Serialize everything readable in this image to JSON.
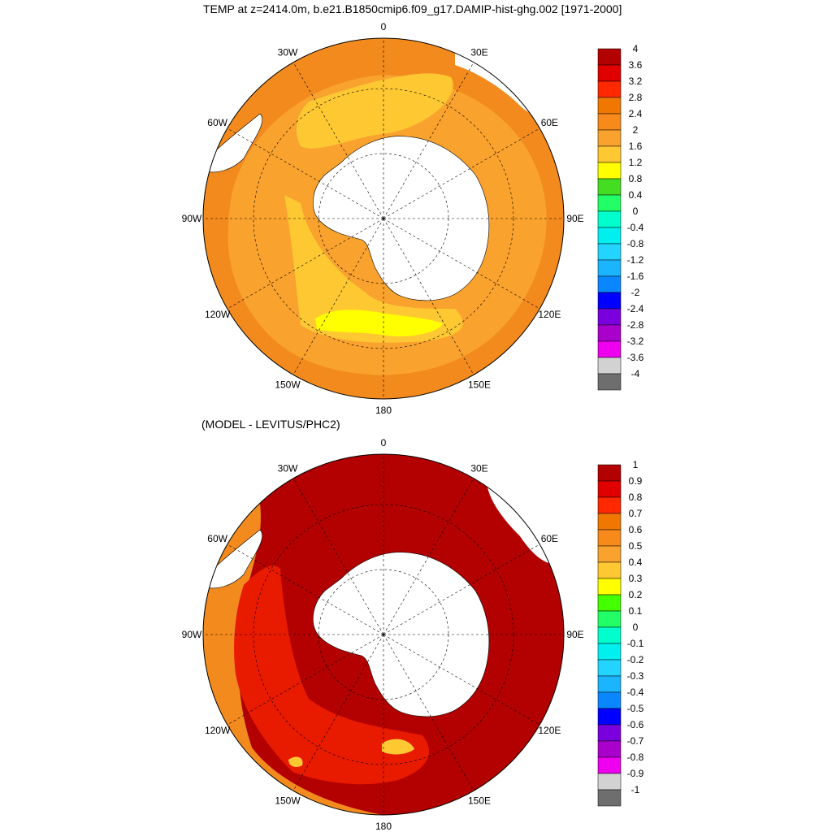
{
  "top_title": "TEMP at z=2414.0m, b.e21.B1850cmip6.f09_g17.DAMIP-hist-ghg.002 [1971-2000]",
  "bottom_title": "(MODEL - LEVITUS/PHC2)",
  "longitude_labels": [
    "0",
    "30E",
    "60E",
    "90E",
    "120E",
    "150E",
    "180",
    "150W",
    "120W",
    "90W",
    "60W",
    "30W"
  ],
  "top_colorbar": {
    "labels": [
      "4",
      "3.6",
      "3.2",
      "2.8",
      "2.4",
      "2",
      "1.6",
      "1.2",
      "0.8",
      "0.4",
      "0",
      "-0.4",
      "-0.8",
      "-1.2",
      "-1.6",
      "-2",
      "-2.4",
      "-2.8",
      "-3.2",
      "-3.6",
      "-4"
    ],
    "colors": [
      "#b30000",
      "#e00000",
      "#ff2800",
      "#f07800",
      "#f78a1a",
      "#f9a22e",
      "#fdc832",
      "#ffff00",
      "#44dd22",
      "#22ff66",
      "#00ffcc",
      "#00f0f0",
      "#22d4ff",
      "#1ab4ff",
      "#0a86ff",
      "#0000ff",
      "#7a00dd",
      "#aa00cc",
      "#ee00ee",
      "#d2d2d2",
      "#6e6e6e"
    ]
  },
  "bottom_colorbar": {
    "labels": [
      "1",
      "0.9",
      "0.8",
      "0.7",
      "0.6",
      "0.5",
      "0.4",
      "0.3",
      "0.2",
      "0.1",
      "0",
      "-0.1",
      "-0.2",
      "-0.3",
      "-0.4",
      "-0.5",
      "-0.6",
      "-0.7",
      "-0.8",
      "-0.9",
      "-1"
    ],
    "colors": [
      "#b30000",
      "#e00000",
      "#ff2800",
      "#f07800",
      "#f78a1a",
      "#f9a22e",
      "#fdc832",
      "#ffff00",
      "#44ff00",
      "#22ff66",
      "#00ffcc",
      "#00f0f0",
      "#22d4ff",
      "#1ab4ff",
      "#0a86ff",
      "#0000ff",
      "#7a00dd",
      "#aa00cc",
      "#ee00ee",
      "#d2d2d2",
      "#6e6e6e"
    ]
  },
  "top_map_colors": {
    "outer": "#f28a1e",
    "mid": "#f9a22e",
    "inner": "#fdc832",
    "warm_core": "#ffff00",
    "land": "#ffffff"
  },
  "bottom_map_colors": {
    "main": "#b30000",
    "red": "#e81a00",
    "orange": "#f28a1e",
    "yellow": "#fdc832",
    "land": "#ffffff"
  }
}
